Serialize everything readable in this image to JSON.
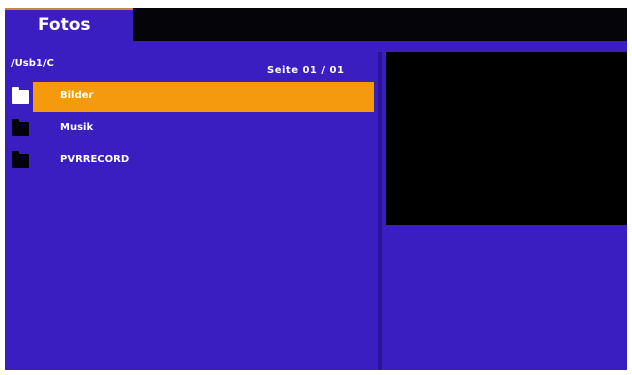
{
  "header": {
    "tab_label": "Fotos"
  },
  "browser": {
    "path": "/Usb1/C",
    "page_info": "Seite 01 / 01",
    "items": [
      {
        "label": "Bilder",
        "selected": true,
        "icon": "folder-icon"
      },
      {
        "label": "Musik",
        "selected": false,
        "icon": "folder-icon"
      },
      {
        "label": "PVRRECORD",
        "selected": false,
        "icon": "folder-icon"
      }
    ]
  },
  "colors": {
    "background": "#3a1ec0",
    "highlight": "#f59a0c",
    "topbar": "#050408",
    "preview": "#000000"
  }
}
